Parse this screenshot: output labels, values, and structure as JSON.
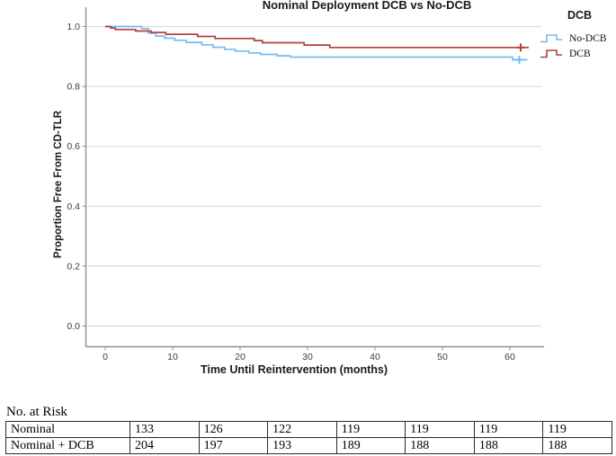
{
  "chart_data": {
    "type": "line",
    "subtype": "kaplan-meier-step",
    "title": "Nominal Deployment DCB vs No-DCB",
    "xlabel": "Time Until Reintervention (months)",
    "ylabel": "Proportion Free From CD-TLR",
    "xticks": [
      0,
      10,
      20,
      30,
      40,
      50,
      60
    ],
    "yticks": [
      "1.0",
      "0.8",
      "0.6",
      "0.4",
      "0.2",
      "0.0"
    ],
    "xlim": [
      -3,
      65
    ],
    "ylim": [
      -0.06,
      1.06
    ],
    "grid": "horizontal",
    "legend": {
      "title": "DCB",
      "position": "top-right"
    },
    "series": [
      {
        "name": "No-DCB",
        "color": "#74BCF0",
        "start": [
          0,
          1.0
        ],
        "steps": [
          [
            5.4,
            0.993
          ],
          [
            6.4,
            0.978
          ],
          [
            7.5,
            0.968
          ],
          [
            8.8,
            0.961
          ],
          [
            10.3,
            0.954
          ],
          [
            12.0,
            0.947
          ],
          [
            14.3,
            0.939
          ],
          [
            16.0,
            0.931
          ],
          [
            17.7,
            0.924
          ],
          [
            19.3,
            0.918
          ],
          [
            21.3,
            0.912
          ],
          [
            23.0,
            0.907
          ],
          [
            25.5,
            0.902
          ],
          [
            27.5,
            0.898
          ],
          [
            60.4,
            0.889
          ]
        ],
        "end_x": 62.6,
        "censor": [
          61.4,
          0.889
        ]
      },
      {
        "name": "DCB",
        "color": "#B04040",
        "start": [
          0,
          1.0
        ],
        "steps": [
          [
            0.8,
            0.995
          ],
          [
            1.5,
            0.99
          ],
          [
            4.5,
            0.985
          ],
          [
            6.8,
            0.98
          ],
          [
            9.0,
            0.974
          ],
          [
            13.7,
            0.967
          ],
          [
            16.3,
            0.96
          ],
          [
            22.1,
            0.953
          ],
          [
            23.3,
            0.946
          ],
          [
            29.5,
            0.938
          ],
          [
            33.3,
            0.93
          ]
        ],
        "end_x": 62.8,
        "censor": [
          61.6,
          0.93
        ]
      }
    ]
  },
  "risk_table": {
    "caption": "No. at Risk",
    "rows": [
      {
        "label": "Nominal",
        "values": [
          "133",
          "126",
          "122",
          "119",
          "119",
          "119",
          "119"
        ]
      },
      {
        "label": "Nominal + DCB",
        "values": [
          "204",
          "197",
          "193",
          "189",
          "188",
          "188",
          "188"
        ]
      }
    ]
  }
}
